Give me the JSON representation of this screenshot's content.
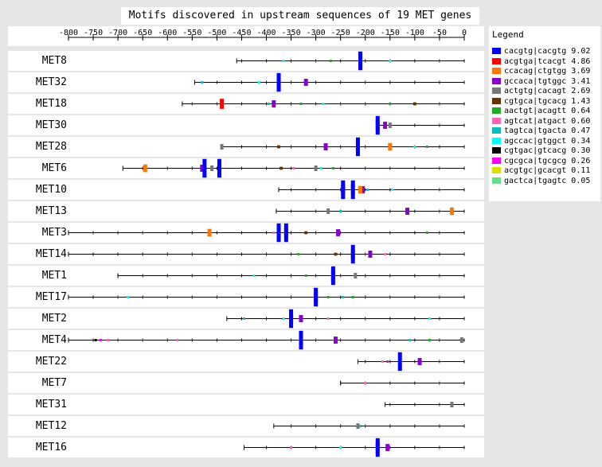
{
  "chart_data": {
    "type": "motif-map",
    "title": "Motifs discovered in upstream sequences of 19 MET genes",
    "x_ticks": [
      "-800",
      "-750",
      "-700",
      "-650",
      "-600",
      "-550",
      "-500",
      "-450",
      "-400",
      "-350",
      "-300",
      "-250",
      "-200",
      "-150",
      "-100",
      "-50",
      "0"
    ],
    "xlim": [
      -800,
      0
    ],
    "legend_title": "Legend",
    "motifs": [
      {
        "pattern": "cacgtg|cacgtg",
        "score": "9.02",
        "color": "#0000ff"
      },
      {
        "pattern": "acgtga|tcacgt",
        "score": "4.86",
        "color": "#ff0000"
      },
      {
        "pattern": "ccacag|ctgtgg",
        "score": "3.69",
        "color": "#ff7700"
      },
      {
        "pattern": "gccaca|tgtggc",
        "score": "3.41",
        "color": "#8800cc"
      },
      {
        "pattern": "actgtg|cacagt",
        "score": "2.69",
        "color": "#777777"
      },
      {
        "pattern": "cgtgca|tgcacg",
        "score": "1.43",
        "color": "#663300"
      },
      {
        "pattern": "aactgt|acagtt",
        "score": "0.64",
        "color": "#22aa22"
      },
      {
        "pattern": "agtcat|atgact",
        "score": "0.60",
        "color": "#ff66bb"
      },
      {
        "pattern": "tagtca|tgacta",
        "score": "0.47",
        "color": "#11bbbb"
      },
      {
        "pattern": "agccac|gtggct",
        "score": "0.34",
        "color": "#00ffff"
      },
      {
        "pattern": "cgtgac|gtcacg",
        "score": "0.30",
        "color": "#000000"
      },
      {
        "pattern": "cgcgca|tgcgcg",
        "score": "0.26",
        "color": "#ff00ff"
      },
      {
        "pattern": "acgtgc|gcacgt",
        "score": "0.11",
        "color": "#dddd00"
      },
      {
        "pattern": "gactca|tgagtc",
        "score": "0.05",
        "color": "#66dd88"
      }
    ],
    "genes": [
      {
        "name": "MET8",
        "start": -460,
        "sites": [
          [
            -210,
            0
          ],
          [
            -365,
            9
          ],
          [
            -270,
            6
          ],
          [
            -150,
            9
          ]
        ]
      },
      {
        "name": "MET32",
        "start": -545,
        "sites": [
          [
            -375,
            0
          ],
          [
            -375,
            1
          ],
          [
            -320,
            3
          ],
          [
            -530,
            8
          ],
          [
            -415,
            9
          ]
        ]
      },
      {
        "name": "MET18",
        "start": -570,
        "sites": [
          [
            -490,
            1
          ],
          [
            -385,
            3
          ],
          [
            -395,
            8
          ],
          [
            -285,
            9
          ],
          [
            -100,
            5
          ],
          [
            -330,
            6
          ],
          [
            -150,
            6
          ]
        ]
      },
      {
        "name": "MET30",
        "start": -175,
        "sites": [
          [
            -175,
            0
          ],
          [
            -175,
            1
          ],
          [
            -160,
            3
          ],
          [
            -150,
            4
          ]
        ]
      },
      {
        "name": "MET28",
        "start": -490,
        "sites": [
          [
            -215,
            0
          ],
          [
            -215,
            1
          ],
          [
            -490,
            4
          ],
          [
            -150,
            2
          ],
          [
            -375,
            5
          ],
          [
            -280,
            3
          ],
          [
            -100,
            9
          ],
          [
            -75,
            6
          ]
        ]
      },
      {
        "name": "MET6",
        "start": -690,
        "sites": [
          [
            -525,
            0
          ],
          [
            -530,
            3
          ],
          [
            -495,
            0
          ],
          [
            -495,
            1
          ],
          [
            -645,
            2
          ],
          [
            -510,
            4
          ],
          [
            -300,
            4
          ],
          [
            -265,
            6
          ],
          [
            -370,
            5
          ],
          [
            -345,
            7
          ],
          [
            -290,
            9
          ]
        ]
      },
      {
        "name": "MET10",
        "start": -375,
        "sites": [
          [
            -245,
            0
          ],
          [
            -245,
            1
          ],
          [
            -225,
            0
          ],
          [
            -225,
            1
          ],
          [
            -210,
            2
          ],
          [
            -205,
            3
          ],
          [
            -145,
            9
          ],
          [
            -195,
            8
          ]
        ]
      },
      {
        "name": "MET13",
        "start": -380,
        "sites": [
          [
            -115,
            3
          ],
          [
            -25,
            2
          ],
          [
            -275,
            4
          ],
          [
            -250,
            8
          ]
        ]
      },
      {
        "name": "MET3",
        "start": -800,
        "sites": [
          [
            -375,
            0
          ],
          [
            -375,
            1
          ],
          [
            -360,
            0
          ],
          [
            -360,
            1
          ],
          [
            -515,
            2
          ],
          [
            -255,
            3
          ],
          [
            -320,
            5
          ],
          [
            -385,
            7
          ],
          [
            -75,
            6
          ]
        ]
      },
      {
        "name": "MET14",
        "start": -800,
        "sites": [
          [
            -225,
            0
          ],
          [
            -225,
            1
          ],
          [
            -190,
            3
          ],
          [
            -260,
            5
          ],
          [
            -335,
            6
          ],
          [
            -160,
            7
          ]
        ]
      },
      {
        "name": "MET1",
        "start": -700,
        "sites": [
          [
            -265,
            0
          ],
          [
            -265,
            1
          ],
          [
            -220,
            4
          ],
          [
            -320,
            6
          ],
          [
            -425,
            9
          ]
        ]
      },
      {
        "name": "MET17",
        "start": -800,
        "sites": [
          [
            -300,
            0
          ],
          [
            -300,
            1
          ],
          [
            -275,
            6
          ],
          [
            -225,
            6
          ],
          [
            -245,
            8
          ],
          [
            -680,
            9
          ]
        ]
      },
      {
        "name": "MET2",
        "start": -480,
        "sites": [
          [
            -350,
            0
          ],
          [
            -350,
            1
          ],
          [
            -330,
            3
          ],
          [
            -445,
            8
          ],
          [
            -365,
            9
          ],
          [
            -275,
            7
          ],
          [
            -70,
            9
          ]
        ]
      },
      {
        "name": "MET4",
        "start": -800,
        "sites": [
          [
            -330,
            0
          ],
          [
            -330,
            1
          ],
          [
            -260,
            3
          ],
          [
            -735,
            11
          ],
          [
            -745,
            10
          ],
          [
            -720,
            7
          ],
          [
            -580,
            7
          ],
          [
            -70,
            6
          ],
          [
            -5,
            4
          ],
          [
            -110,
            8
          ]
        ]
      },
      {
        "name": "MET22",
        "start": -215,
        "sites": [
          [
            -130,
            0
          ],
          [
            -90,
            3
          ],
          [
            -155,
            11
          ],
          [
            -165,
            7
          ]
        ]
      },
      {
        "name": "MET7",
        "start": -250,
        "sites": [
          [
            -200,
            7
          ]
        ]
      },
      {
        "name": "MET31",
        "start": -160,
        "sites": [
          [
            -25,
            4
          ]
        ]
      },
      {
        "name": "MET12",
        "start": -385,
        "sites": [
          [
            -215,
            4
          ],
          [
            -210,
            8
          ]
        ]
      },
      {
        "name": "MET16",
        "start": -445,
        "sites": [
          [
            -175,
            0
          ],
          [
            -175,
            1
          ],
          [
            -155,
            3
          ],
          [
            -350,
            7
          ],
          [
            -250,
            9
          ]
        ]
      }
    ]
  }
}
